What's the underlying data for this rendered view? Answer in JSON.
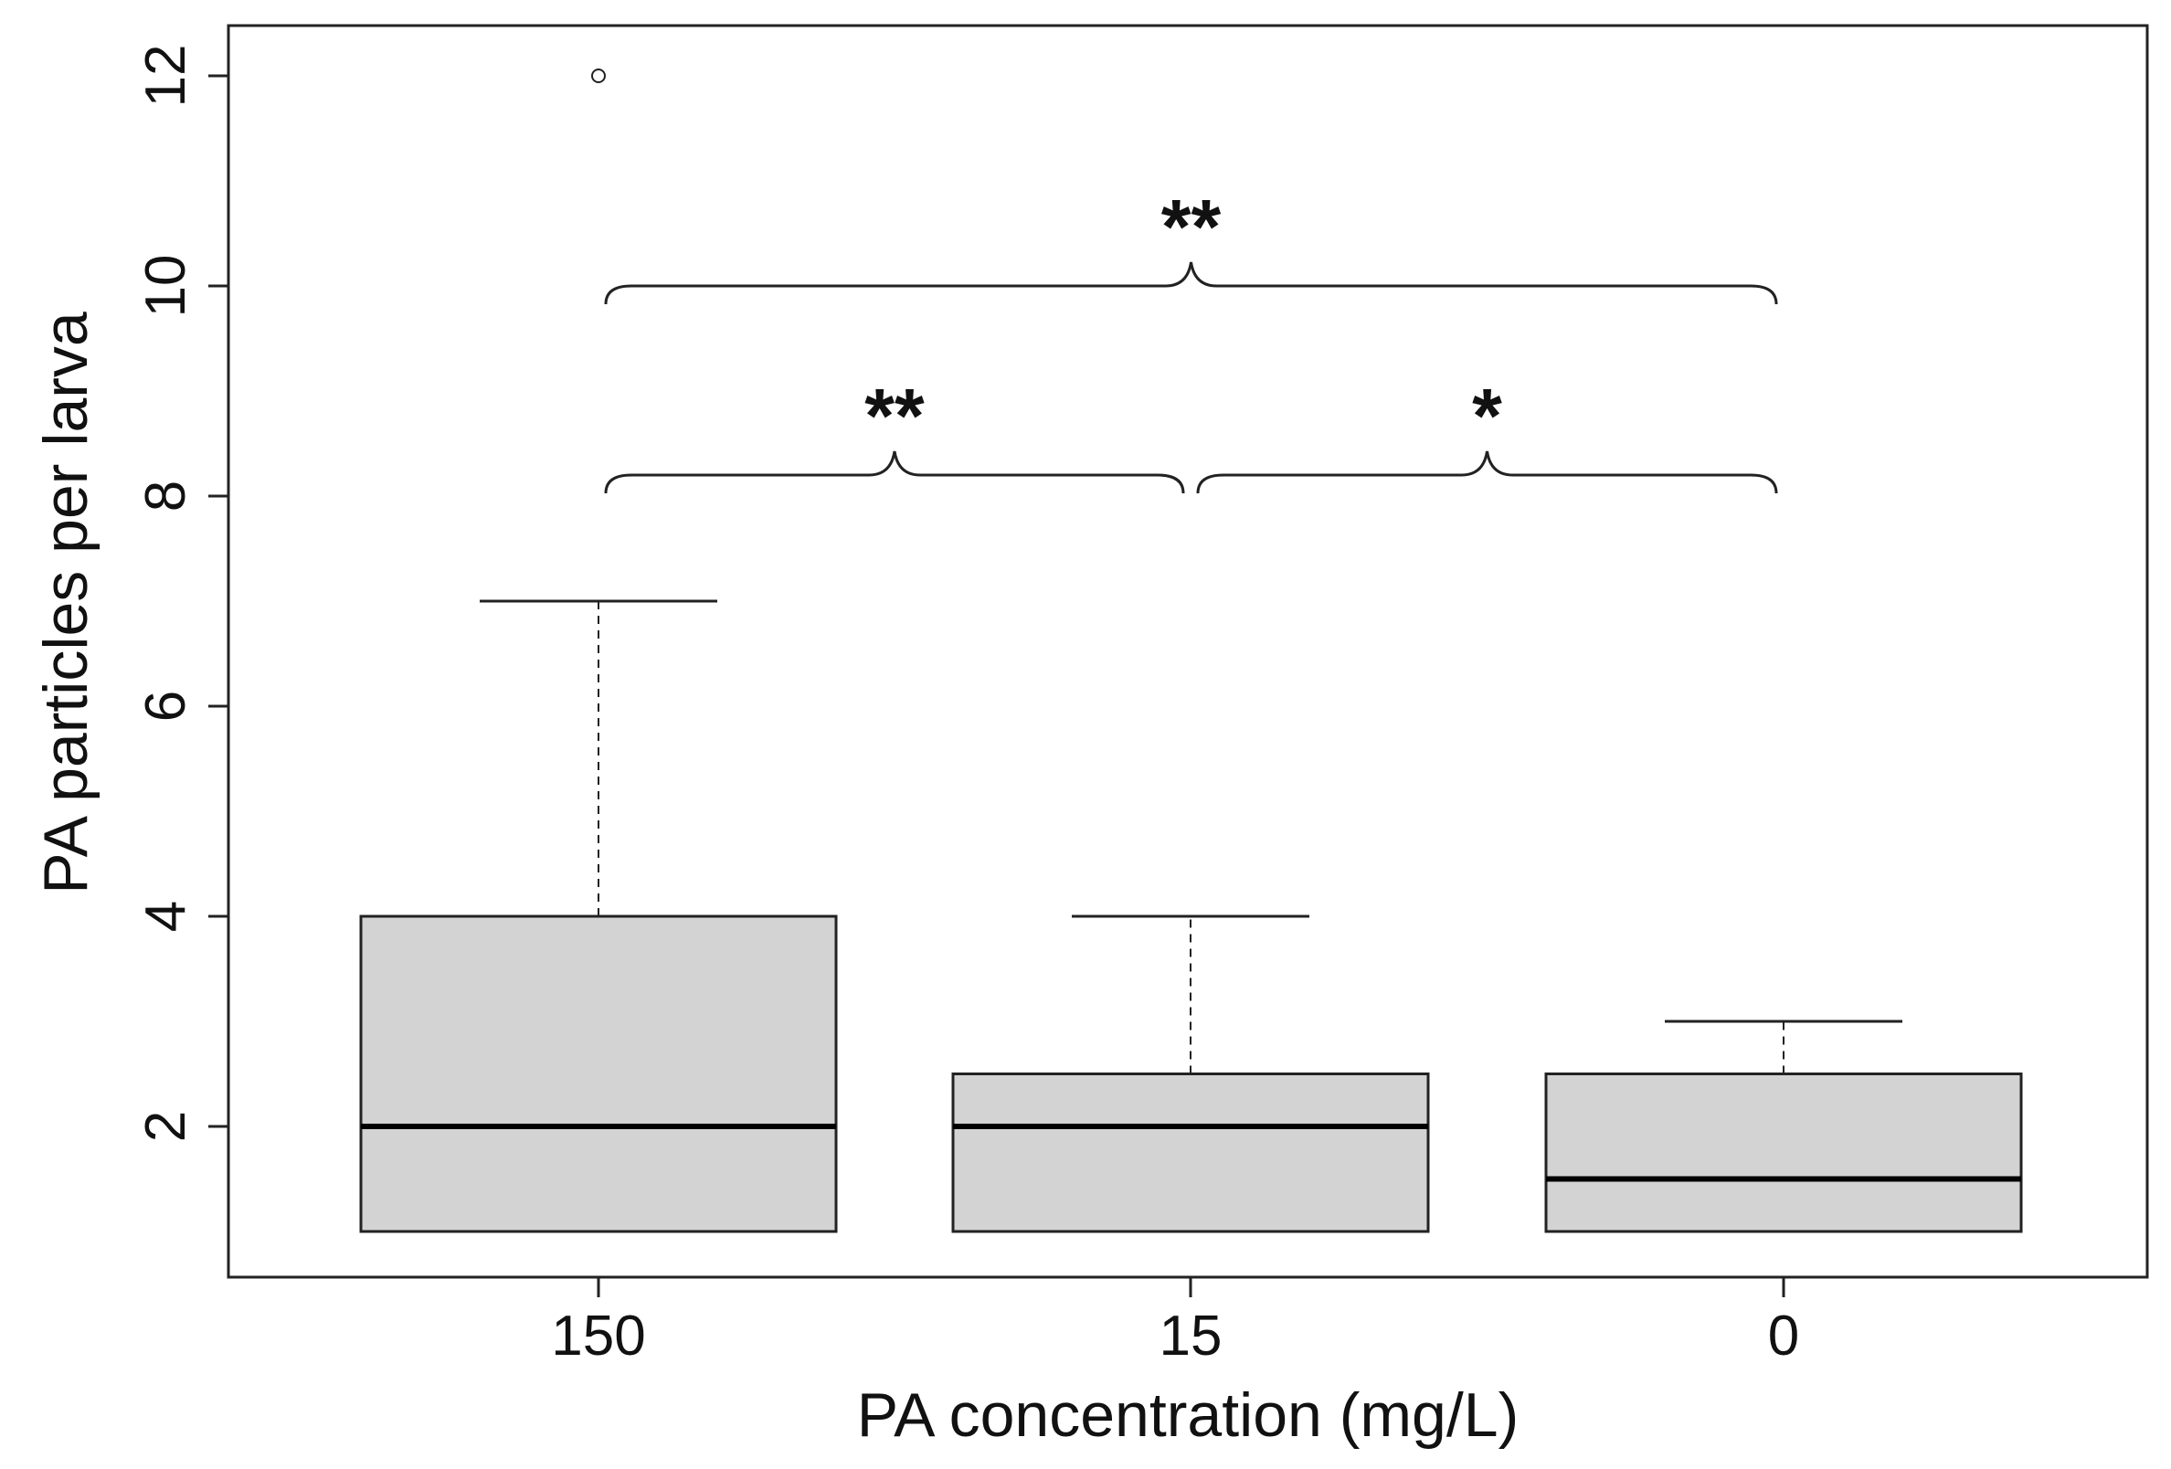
{
  "chart_data": {
    "type": "boxplot",
    "xlabel": "PA concentration (mg/L)",
    "ylabel": "PA particles per larva",
    "ylim": [
      0.55,
      12.5
    ],
    "yticks": [
      2,
      4,
      6,
      8,
      10,
      12
    ],
    "categories": [
      "150",
      "15",
      "0"
    ],
    "boxes": [
      {
        "category": "150",
        "q1": 1,
        "median": 2,
        "q3": 4,
        "whisker_low": 1,
        "whisker_high": 7,
        "outliers": [
          12
        ]
      },
      {
        "category": "15",
        "q1": 1,
        "median": 2,
        "q3": 2.5,
        "whisker_low": 1,
        "whisker_high": 4,
        "outliers": []
      },
      {
        "category": "0",
        "q1": 1,
        "median": 1.5,
        "q3": 2.5,
        "whisker_low": 1,
        "whisker_high": 3,
        "outliers": []
      }
    ],
    "box_fill": "#d3d3d3",
    "significance": [
      {
        "from": 0,
        "to": 2,
        "y": 10,
        "label": "**"
      },
      {
        "from": 0,
        "to": 1,
        "y": 8.2,
        "label": "**"
      },
      {
        "from": 1,
        "to": 2,
        "y": 8.2,
        "label": "*"
      }
    ]
  }
}
